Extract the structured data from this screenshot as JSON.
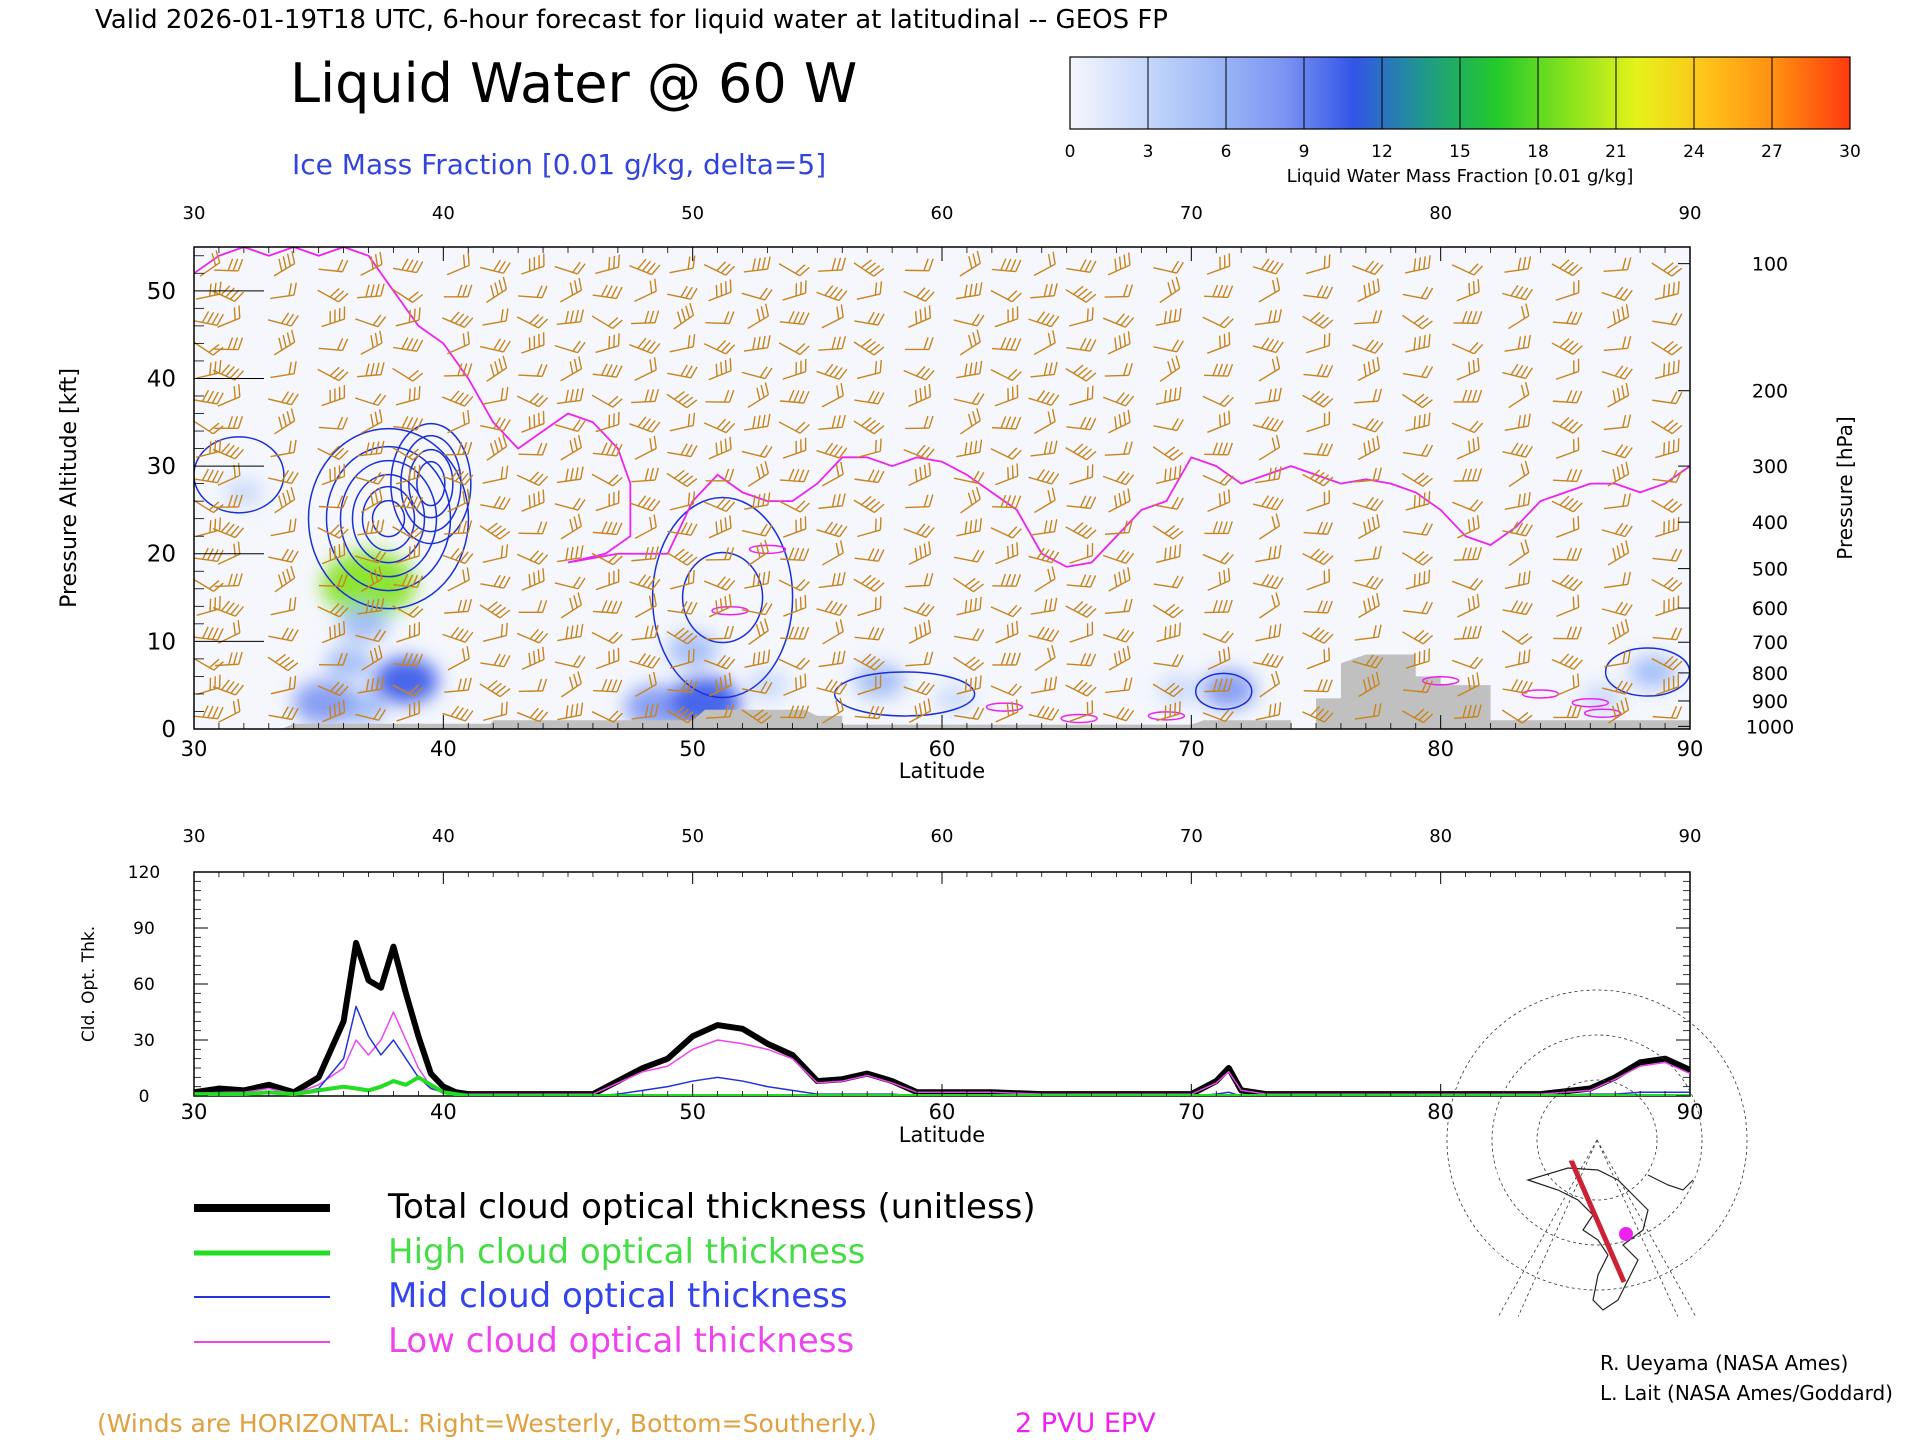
{
  "header": {
    "valid_line": "Valid 2026-01-19T18 UTC, 6-hour forecast for liquid water at latitudinal -- GEOS FP",
    "title": "Liquid Water @ 60 W",
    "subtitle": "Ice Mass Fraction [0.01 g/kg, delta=5]"
  },
  "colorbar": {
    "ticks": [
      "0",
      "3",
      "6",
      "9",
      "12",
      "15",
      "18",
      "21",
      "24",
      "27",
      "30"
    ],
    "label": "Liquid Water Mass Fraction [0.01 g/kg]",
    "colors": [
      "#f4f6fd",
      "#c9d9fb",
      "#9fbaf7",
      "#7d95f2",
      "#3355e8",
      "#1f9a8a",
      "#22c92b",
      "#84e21c",
      "#e5f21a",
      "#ffc21a",
      "#ff8a10",
      "#ff3a10"
    ]
  },
  "colors": {
    "wind_barb": "#c8841c",
    "epv_contour": "#ee22ee",
    "ice_contour": "#1a2fd6",
    "terrain": "#c0c0c0",
    "total_line": "#000000",
    "high_line": "#22dd22",
    "mid_line": "#2233dd",
    "low_line": "#ee44ee",
    "wind_note": "#e0a040"
  },
  "chart_data": [
    {
      "type": "heatmap",
      "title": "Liquid Water @ 60 W",
      "xlabel": "Latitude",
      "ylabel": "Pressure Altitude [kft]",
      "right_ylabel": "Pressure [hPa]",
      "xlim": [
        30,
        90
      ],
      "ylim": [
        0,
        55
      ],
      "x_ticks": [
        "30",
        "40",
        "50",
        "60",
        "70",
        "80",
        "90"
      ],
      "y_ticks": [
        "0",
        "10",
        "20",
        "30",
        "40",
        "50"
      ],
      "pressure_ticks": [
        {
          "label": "100",
          "kft": 53.1
        },
        {
          "label": "200",
          "kft": 38.6
        },
        {
          "label": "300",
          "kft": 30.0
        },
        {
          "label": "400",
          "kft": 23.6
        },
        {
          "label": "500",
          "kft": 18.3
        },
        {
          "label": "600",
          "kft": 13.8
        },
        {
          "label": "700",
          "kft": 9.9
        },
        {
          "label": "800",
          "kft": 6.4
        },
        {
          "label": "900",
          "kft": 3.2
        },
        {
          "label": "1000",
          "kft": 0.3
        }
      ],
      "liquid_water_blobs": [
        {
          "lat": 37.0,
          "kft": 16.5,
          "value": 18
        },
        {
          "lat": 36.8,
          "kft": 12.0,
          "value": 6
        },
        {
          "lat": 36.2,
          "kft": 7.5,
          "value": 5
        },
        {
          "lat": 36.7,
          "kft": 2.5,
          "value": 6
        },
        {
          "lat": 38.5,
          "kft": 5.5,
          "value": 10
        },
        {
          "lat": 35.2,
          "kft": 3.0,
          "value": 9
        },
        {
          "lat": 32.0,
          "kft": 27.0,
          "value": 3
        },
        {
          "lat": 50.0,
          "kft": 9.0,
          "value": 6
        },
        {
          "lat": 48.5,
          "kft": 2.5,
          "value": 9
        },
        {
          "lat": 50.5,
          "kft": 3.0,
          "value": 12
        },
        {
          "lat": 53.0,
          "kft": 5.0,
          "value": 4
        },
        {
          "lat": 57.5,
          "kft": 5.5,
          "value": 6
        },
        {
          "lat": 60.5,
          "kft": 3.5,
          "value": 3
        },
        {
          "lat": 71.5,
          "kft": 4.5,
          "value": 7
        },
        {
          "lat": 69.5,
          "kft": 4.5,
          "value": 4
        },
        {
          "lat": 88.5,
          "kft": 6.5,
          "value": 5
        },
        {
          "lat": 86.5,
          "kft": 3.5,
          "value": 4
        }
      ],
      "terrain": [
        [
          30,
          0
        ],
        [
          33.5,
          0
        ],
        [
          34,
          0.6
        ],
        [
          41.9,
          0.6
        ],
        [
          42,
          1
        ],
        [
          50,
          1
        ],
        [
          50.5,
          2.2
        ],
        [
          54.5,
          2.2
        ],
        [
          55,
          1.5
        ],
        [
          56,
          1.5
        ],
        [
          56,
          0.5
        ],
        [
          70,
          0.5
        ],
        [
          70.5,
          1
        ],
        [
          74,
          1
        ],
        [
          74,
          0
        ],
        [
          75,
          0
        ],
        [
          75,
          3.5
        ],
        [
          76,
          3.5
        ],
        [
          76,
          7.5
        ],
        [
          77,
          8.5
        ],
        [
          79,
          8.5
        ],
        [
          79,
          6
        ],
        [
          80,
          6
        ],
        [
          80,
          5
        ],
        [
          82,
          5
        ],
        [
          82,
          1
        ],
        [
          86,
          1
        ],
        [
          90,
          1
        ],
        [
          90,
          0
        ]
      ],
      "epv_2pvu_line": [
        [
          30,
          52
        ],
        [
          31,
          54
        ],
        [
          32,
          55
        ],
        [
          33,
          54
        ],
        [
          34,
          55
        ],
        [
          35,
          54
        ],
        [
          36,
          55
        ],
        [
          37,
          54
        ],
        [
          38,
          50
        ],
        [
          39,
          46
        ],
        [
          40,
          44
        ],
        [
          41,
          40
        ],
        [
          42,
          35
        ],
        [
          43,
          32
        ],
        [
          44,
          34
        ],
        [
          45,
          36
        ],
        [
          46,
          35
        ],
        [
          47,
          32
        ],
        [
          47.5,
          28
        ],
        [
          47.5,
          22
        ],
        [
          46.5,
          20
        ],
        [
          45,
          19
        ],
        [
          47,
          20
        ],
        [
          49,
          20
        ],
        [
          50,
          26
        ],
        [
          51,
          29
        ],
        [
          52,
          27
        ],
        [
          53,
          26
        ],
        [
          54,
          26
        ],
        [
          55,
          28
        ],
        [
          56,
          31
        ],
        [
          57,
          31
        ],
        [
          58,
          30
        ],
        [
          59,
          31
        ],
        [
          60,
          30.5
        ],
        [
          61,
          29
        ],
        [
          62,
          27
        ],
        [
          63,
          25
        ],
        [
          64,
          20
        ],
        [
          65,
          18.5
        ],
        [
          66,
          19
        ],
        [
          67,
          22
        ],
        [
          68,
          25
        ],
        [
          69,
          26
        ],
        [
          70,
          31
        ],
        [
          71,
          30
        ],
        [
          72,
          28
        ],
        [
          73,
          29
        ],
        [
          74,
          30
        ],
        [
          75,
          29
        ],
        [
          76,
          28
        ],
        [
          77,
          28.5
        ],
        [
          78,
          28
        ],
        [
          79,
          27
        ],
        [
          80,
          25
        ],
        [
          81,
          22
        ],
        [
          82,
          21
        ],
        [
          83,
          23
        ],
        [
          84,
          26
        ],
        [
          85,
          27
        ],
        [
          86,
          28
        ],
        [
          87,
          28
        ],
        [
          88,
          27
        ],
        [
          89,
          28
        ],
        [
          90,
          30
        ]
      ],
      "wind_barb_columns": [
        30.5,
        31.3,
        33.5,
        35.5,
        37,
        38.5,
        40.5,
        42,
        43.5,
        45,
        46.5,
        48,
        49.5,
        51,
        52.5,
        54,
        55.5,
        57,
        59,
        61,
        62.5,
        64,
        65.5,
        67,
        69,
        71,
        73,
        75,
        77,
        79,
        81,
        83,
        85,
        87,
        89
      ],
      "wind_barb_levels_kft": [
        53,
        50,
        47,
        44,
        41,
        38,
        35,
        32,
        29,
        26,
        23,
        20,
        17,
        14,
        11,
        8,
        5,
        2
      ]
    },
    {
      "type": "line",
      "xlabel": "Latitude",
      "ylabel": "Cld. Opt. Thk.",
      "xlim": [
        30,
        90
      ],
      "ylim": [
        0,
        120
      ],
      "x_ticks": [
        "30",
        "40",
        "50",
        "60",
        "70",
        "80",
        "90"
      ],
      "y_ticks": [
        "0",
        "30",
        "60",
        "90",
        "120"
      ],
      "x": [
        30,
        31,
        32,
        33,
        34,
        35,
        36,
        36.5,
        37,
        37.5,
        38,
        38.5,
        39,
        39.5,
        40,
        40.5,
        41,
        42,
        44,
        46,
        47,
        48,
        49,
        50,
        51,
        52,
        53,
        54,
        55,
        56,
        57,
        58,
        59,
        60,
        62,
        64,
        66,
        68,
        70,
        71,
        71.5,
        72,
        73,
        75,
        80,
        84,
        86,
        87,
        88,
        89,
        90
      ],
      "series": [
        {
          "name": "Total cloud optical thickness (unitless)",
          "values": [
            2,
            4,
            3,
            6,
            2,
            10,
            40,
            82,
            62,
            58,
            80,
            55,
            32,
            12,
            5,
            2,
            1,
            1,
            1,
            1,
            8,
            15,
            20,
            32,
            38,
            36,
            28,
            22,
            8,
            9,
            12,
            8,
            2,
            2,
            2,
            1,
            1,
            1,
            1,
            8,
            15,
            3,
            1,
            1,
            1,
            1,
            4,
            10,
            18,
            20,
            14
          ]
        },
        {
          "name": "High cloud optical thickness",
          "values": [
            1,
            1,
            1,
            2,
            1,
            3,
            5,
            4,
            3,
            5,
            8,
            6,
            10,
            6,
            2,
            1,
            0,
            0,
            0,
            0,
            0,
            0,
            0,
            0,
            0,
            0,
            0,
            0,
            0,
            0,
            0,
            0,
            0,
            0,
            0,
            0,
            0,
            0,
            0,
            0,
            0,
            0,
            0,
            0,
            0,
            0,
            0,
            0,
            0,
            0,
            0
          ]
        },
        {
          "name": "Mid cloud optical thickness",
          "values": [
            1,
            2,
            1,
            2,
            1,
            4,
            20,
            48,
            32,
            22,
            30,
            20,
            10,
            4,
            2,
            1,
            0,
            0,
            0,
            0,
            1,
            3,
            5,
            8,
            10,
            8,
            5,
            3,
            1,
            1,
            1,
            1,
            0,
            0,
            0,
            0,
            0,
            0,
            0,
            1,
            2,
            0,
            0,
            0,
            0,
            0,
            1,
            1,
            2,
            2,
            2
          ]
        },
        {
          "name": "Low cloud optical thickness",
          "values": [
            1,
            2,
            2,
            4,
            1,
            6,
            15,
            30,
            22,
            30,
            45,
            30,
            15,
            5,
            2,
            1,
            1,
            1,
            1,
            1,
            7,
            13,
            16,
            25,
            30,
            28,
            25,
            20,
            7,
            8,
            11,
            7,
            2,
            2,
            2,
            1,
            1,
            1,
            1,
            7,
            13,
            3,
            1,
            1,
            1,
            1,
            3,
            9,
            16,
            18,
            12
          ]
        }
      ]
    }
  ],
  "legend": {
    "total": "Total cloud optical thickness (unitless)",
    "high": "High cloud optical thickness",
    "mid": "Mid cloud optical thickness",
    "low": "Low cloud optical thickness"
  },
  "map_inset": {
    "description_icon": "polar-map-icon"
  },
  "credits": {
    "line1": "R. Ueyama (NASA Ames)",
    "line2": "L. Lait (NASA Ames/Goddard)"
  },
  "footer": {
    "wind_note": "(Winds are HORIZONTAL: Right=Westerly, Bottom=Southerly.)",
    "epv_note": "2 PVU EPV"
  }
}
